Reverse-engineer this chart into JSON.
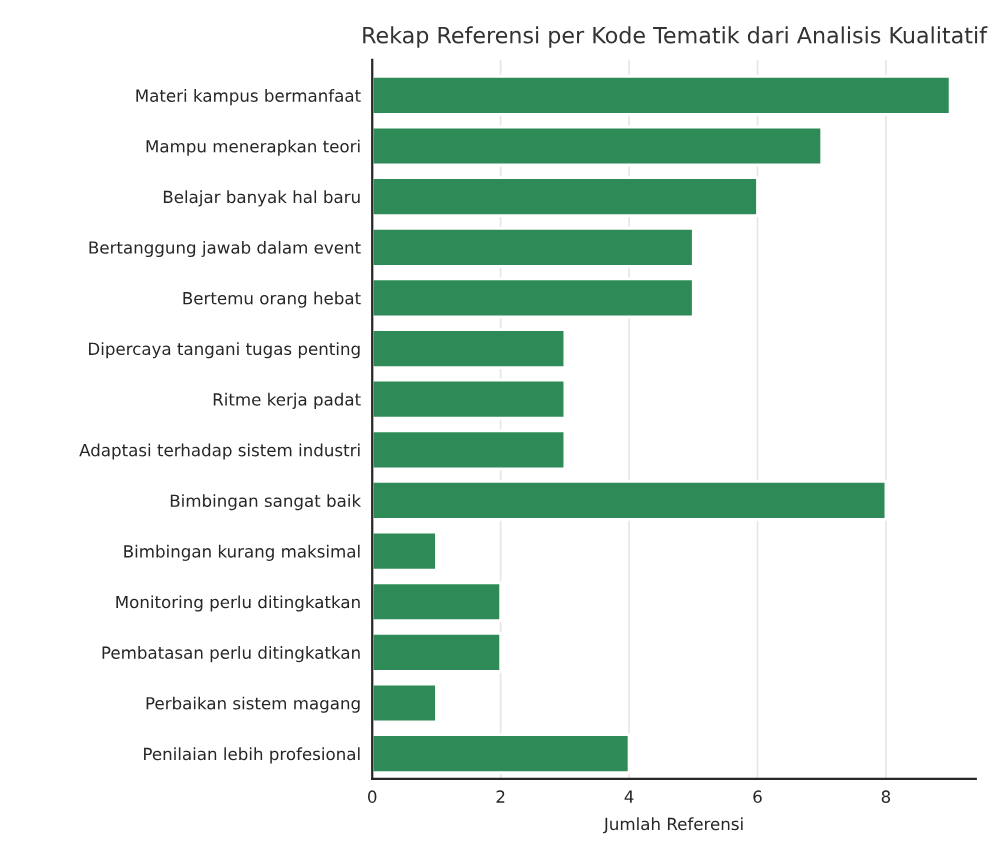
{
  "chart_data": {
    "type": "bar",
    "orientation": "horizontal",
    "title": "Rekap Referensi per Kode Tematik dari Analisis Kualitatif",
    "xlabel": "Jumlah Referensi",
    "categories": [
      "Materi kampus bermanfaat",
      "Mampu menerapkan teori",
      "Belajar banyak hal baru",
      "Bertanggung jawab dalam event",
      "Bertemu orang hebat",
      "Dipercaya tangani tugas penting",
      "Ritme kerja padat",
      "Adaptasi terhadap sistem industri",
      "Bimbingan sangat baik",
      "Bimbingan kurang maksimal",
      "Monitoring perlu ditingkatkan",
      "Pembatasan perlu ditingkatkan",
      "Perbaikan sistem magang",
      "Penilaian lebih profesional"
    ],
    "values": [
      9,
      7,
      6,
      5,
      5,
      3,
      3,
      3,
      8,
      1,
      2,
      2,
      1,
      4
    ],
    "color": "#2e8b57",
    "xlim": [
      0,
      9.4
    ],
    "xticks": [
      0,
      2,
      4,
      6,
      8
    ],
    "grid": "x"
  }
}
